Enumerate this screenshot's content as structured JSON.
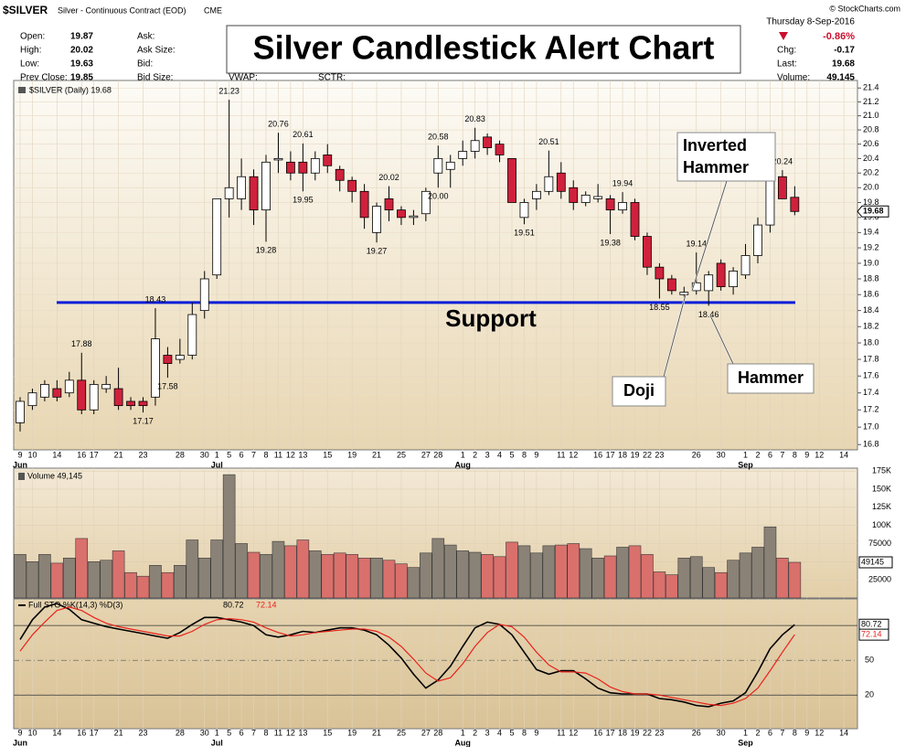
{
  "header": {
    "symbol": "$SILVER",
    "description": "Silver - Continuous Contract (EOD)",
    "exchange": "CME",
    "copyright": "© StockCharts.com",
    "quote": [
      {
        "label": "Open:",
        "value": "19.87"
      },
      {
        "label": "High:",
        "value": "20.02"
      },
      {
        "label": "Low:",
        "value": "19.63"
      },
      {
        "label": "Prev Close:",
        "value": "19.85"
      }
    ],
    "fields": [
      "Ask:",
      "Ask Size:",
      "Bid:",
      "Bid Size:"
    ],
    "extra_fields": [
      "VWAP:",
      "SCTR:"
    ],
    "date": "Thursday  8-Sep-2016",
    "change_pct": "-0.86%",
    "stats": [
      {
        "label": "Chg:",
        "value": "-0.17"
      },
      {
        "label": "Last:",
        "value": "19.68"
      },
      {
        "label": "Volume:",
        "value": "49,145"
      }
    ]
  },
  "chart_data": [
    {
      "type": "candlestick",
      "title": "Silver Candlestick Alert Chart",
      "legend": "$SILVER (Daily) 19.68",
      "log": true,
      "categories": [
        "9",
        "10",
        null,
        "14",
        null,
        "16",
        "17",
        null,
        "21",
        null,
        "23",
        null,
        null,
        "28",
        null,
        "30",
        "1",
        "5",
        "6",
        "7",
        "8",
        "11",
        "12",
        "13",
        null,
        "15",
        null,
        "19",
        null,
        "21",
        null,
        "25",
        null,
        "27",
        "28",
        null,
        "1",
        "2",
        "3",
        "4",
        "5",
        "8",
        "9",
        null,
        "11",
        "12",
        null,
        "16",
        "17",
        "18",
        "19",
        "22",
        "23",
        null,
        null,
        "26",
        null,
        "30",
        null,
        "1",
        "2",
        "6",
        "7",
        "8",
        "9",
        "12",
        null,
        "14"
      ],
      "month_labels": [
        "Jun",
        null,
        null,
        null,
        null,
        null,
        null,
        null,
        null,
        null,
        null,
        null,
        null,
        null,
        null,
        null,
        "Jul",
        null,
        null,
        null,
        null,
        null,
        null,
        null,
        null,
        null,
        null,
        null,
        null,
        null,
        null,
        null,
        null,
        null,
        null,
        null,
        "Aug",
        null,
        null,
        null,
        null,
        null,
        null,
        null,
        null,
        null,
        null,
        null,
        null,
        null,
        null,
        null,
        null,
        null,
        null,
        null,
        null,
        null,
        null,
        "Sep",
        null,
        null,
        null,
        null,
        null,
        null,
        null,
        null
      ],
      "open": [
        17.05,
        17.25,
        17.35,
        17.45,
        17.4,
        17.55,
        17.2,
        17.45,
        17.45,
        17.3,
        17.3,
        17.35,
        17.85,
        17.8,
        17.85,
        18.4,
        18.85,
        19.85,
        19.85,
        20.15,
        19.7,
        20.38,
        20.35,
        20.35,
        20.2,
        20.45,
        20.25,
        20.1,
        19.95,
        19.4,
        19.85,
        19.7,
        19.6,
        19.65,
        20.2,
        20.25,
        20.4,
        20.5,
        20.7,
        20.6,
        20.4,
        19.6,
        19.85,
        19.95,
        20.2,
        20.0,
        19.8,
        19.85,
        19.85,
        19.7,
        19.8,
        19.35,
        18.95,
        18.8,
        18.6,
        18.65,
        18.65,
        19.0,
        18.7,
        18.85,
        19.1,
        19.5,
        20.15,
        19.87,
        null,
        null,
        null,
        null
      ],
      "high": [
        17.35,
        17.45,
        17.55,
        17.55,
        17.65,
        17.88,
        17.55,
        17.6,
        17.7,
        17.35,
        17.35,
        18.43,
        17.95,
        18.05,
        18.5,
        18.9,
        19.85,
        21.23,
        20.4,
        20.25,
        20.45,
        20.76,
        20.5,
        20.61,
        20.5,
        20.6,
        20.3,
        20.15,
        20.05,
        19.8,
        20.02,
        19.75,
        19.7,
        20.0,
        20.58,
        20.45,
        20.65,
        20.83,
        20.75,
        20.65,
        20.4,
        19.85,
        20.05,
        20.51,
        20.35,
        20.1,
        19.95,
        20.05,
        19.9,
        19.94,
        19.85,
        19.4,
        19.0,
        18.85,
        18.7,
        19.14,
        18.9,
        19.05,
        18.95,
        19.25,
        19.6,
        20.3,
        20.24,
        20.02,
        null,
        null,
        null,
        null
      ],
      "low": [
        16.95,
        17.2,
        17.3,
        17.3,
        17.35,
        17.15,
        17.15,
        17.4,
        17.2,
        17.2,
        17.17,
        17.25,
        17.58,
        17.75,
        17.8,
        18.3,
        18.8,
        19.6,
        19.7,
        19.5,
        19.28,
        20.2,
        20.1,
        19.95,
        20.1,
        20.2,
        19.95,
        19.8,
        19.45,
        19.27,
        19.55,
        19.5,
        19.5,
        19.55,
        20.0,
        20.0,
        20.3,
        20.4,
        20.45,
        20.35,
        19.8,
        19.51,
        19.7,
        19.9,
        19.85,
        19.7,
        19.75,
        19.8,
        19.38,
        19.65,
        19.3,
        18.85,
        18.55,
        18.6,
        18.57,
        18.6,
        18.46,
        18.65,
        18.6,
        18.8,
        19.0,
        19.4,
        19.85,
        19.63,
        null,
        null,
        null,
        null
      ],
      "close": [
        17.3,
        17.4,
        17.5,
        17.35,
        17.55,
        17.2,
        17.5,
        17.5,
        17.25,
        17.25,
        17.25,
        18.05,
        17.75,
        17.85,
        18.35,
        18.8,
        19.85,
        20.0,
        20.15,
        19.7,
        20.35,
        20.4,
        20.2,
        20.2,
        20.4,
        20.3,
        20.1,
        19.95,
        19.6,
        19.75,
        19.7,
        19.6,
        19.62,
        19.95,
        20.4,
        20.35,
        20.5,
        20.65,
        20.55,
        20.45,
        19.8,
        19.8,
        19.95,
        20.15,
        19.95,
        19.8,
        19.9,
        19.88,
        19.7,
        19.8,
        19.35,
        18.95,
        18.8,
        18.65,
        18.63,
        18.75,
        18.85,
        18.7,
        18.9,
        19.1,
        19.5,
        20.2,
        19.85,
        19.68,
        null,
        null,
        null,
        null
      ],
      "high_labels": [
        null,
        null,
        null,
        null,
        null,
        "17.88",
        null,
        null,
        null,
        null,
        null,
        "18.43",
        null,
        null,
        null,
        null,
        null,
        "21.23",
        null,
        null,
        null,
        "20.76",
        null,
        "20.61",
        null,
        null,
        null,
        null,
        null,
        null,
        "20.02",
        null,
        null,
        null,
        "20.58",
        null,
        null,
        "20.83",
        null,
        null,
        null,
        null,
        null,
        "20.51",
        null,
        null,
        null,
        null,
        null,
        "19.94",
        null,
        null,
        null,
        null,
        null,
        "19.14",
        null,
        null,
        null,
        null,
        null,
        null,
        "20.24",
        null,
        null,
        null,
        null,
        null
      ],
      "low_labels": [
        null,
        null,
        null,
        null,
        null,
        null,
        null,
        null,
        null,
        null,
        "17.17",
        null,
        "17.58",
        null,
        null,
        null,
        null,
        null,
        null,
        null,
        "19.28",
        null,
        null,
        "19.95",
        null,
        null,
        null,
        null,
        null,
        "19.27",
        null,
        null,
        null,
        null,
        "20.00",
        null,
        null,
        null,
        null,
        null,
        null,
        "19.51",
        null,
        null,
        null,
        null,
        null,
        null,
        "19.38",
        null,
        null,
        null,
        "18.55",
        null,
        null,
        null,
        "18.46",
        null,
        null,
        null,
        null,
        null,
        null,
        null,
        null,
        null,
        null,
        null
      ],
      "ylim": [
        16.74,
        21.51
      ],
      "yticks": [
        21.4,
        21.2,
        {
          "value": 21,
          "label": "21.0"
        },
        20.8,
        20.6,
        20.4,
        20.2,
        {
          "value": 20,
          "label": "20.0"
        },
        19.8,
        19.6,
        19.4,
        19.2,
        {
          "value": 19,
          "label": "19.0"
        },
        18.8,
        18.6,
        18.4,
        18.2,
        {
          "value": 18,
          "label": "18.0"
        },
        17.8,
        17.6,
        17.4,
        17.2,
        {
          "value": 17,
          "label": "17.0"
        },
        16.8
      ],
      "last": {
        "value": 19.68,
        "label": "19.68"
      },
      "support": {
        "value": 18.5,
        "label": "Support",
        "color": "#0a1ed8"
      },
      "annotations": {
        "inverted_hammer": [
          "Inverted",
          "Hammer"
        ],
        "doji": "Doji",
        "hammer": "Hammer"
      },
      "up_color": "#ffffff",
      "down_color": "#d0213c",
      "grid": true
    },
    {
      "type": "bar",
      "legend": "Volume 49,145",
      "values": [
        60000,
        50000,
        60000,
        48000,
        55000,
        82000,
        50000,
        52000,
        65000,
        35000,
        30000,
        45000,
        35000,
        45000,
        80000,
        55000,
        80000,
        170000,
        75000,
        63000,
        60000,
        78000,
        72000,
        80000,
        65000,
        60000,
        62000,
        60000,
        55000,
        55000,
        52000,
        47000,
        42000,
        62000,
        82000,
        73000,
        65000,
        63000,
        60000,
        57000,
        77000,
        72000,
        62000,
        72000,
        73000,
        75000,
        68000,
        55000,
        58000,
        70000,
        72000,
        60000,
        36000,
        32000,
        55000,
        57000,
        42000,
        35000,
        52000,
        62000,
        70000,
        98000,
        55000,
        49145,
        null,
        null,
        null,
        null
      ],
      "ylim": [
        0,
        179000
      ],
      "yticks": [
        25000,
        50000,
        75000,
        {
          "value": 100000,
          "label": "100K"
        },
        {
          "value": 125000,
          "label": "125K"
        },
        {
          "value": 150000,
          "label": "150K"
        },
        {
          "value": 175000,
          "label": "175K"
        }
      ],
      "last": {
        "value": 49145,
        "label": "49145"
      },
      "up_color": "#8a8276",
      "down_color": "#d9706c"
    },
    {
      "type": "line",
      "legend": "Full STO %K(14,3) %D(3)",
      "series": [
        {
          "color": "#000000",
          "last_label": "80.72",
          "values": [
            68,
            85,
            96,
            99,
            94,
            85,
            82,
            79,
            77,
            75,
            73,
            71,
            69,
            74,
            81,
            87,
            87,
            85,
            83,
            80,
            72,
            70,
            72,
            75,
            74,
            76,
            78,
            78,
            76,
            72,
            63,
            52,
            38,
            26,
            33,
            45,
            62,
            78,
            83,
            81,
            72,
            57,
            42,
            38,
            41,
            41,
            34,
            26,
            22,
            21,
            21,
            21,
            17,
            16,
            14,
            11,
            10,
            13,
            15,
            22,
            40,
            60,
            72,
            80.72,
            null,
            null,
            null,
            null
          ]
        },
        {
          "color": "#e8231d",
          "last_label": "72.14",
          "values": [
            58,
            72,
            83,
            93,
            96,
            93,
            87,
            82,
            79,
            77,
            75,
            73,
            71,
            71,
            75,
            81,
            85,
            86,
            85,
            83,
            78,
            74,
            71,
            72,
            74,
            75,
            76,
            77,
            77,
            75,
            70,
            62,
            51,
            39,
            32,
            35,
            47,
            62,
            74,
            81,
            79,
            70,
            57,
            46,
            40,
            40,
            39,
            34,
            27,
            23,
            21,
            21,
            20,
            18,
            16,
            14,
            12,
            11,
            13,
            17,
            26,
            41,
            57,
            72.14,
            null,
            null,
            null,
            null
          ]
        }
      ],
      "ylim": [
        -9,
        103
      ],
      "yticks": [
        20,
        50
      ],
      "levels": [
        20,
        80
      ]
    }
  ]
}
